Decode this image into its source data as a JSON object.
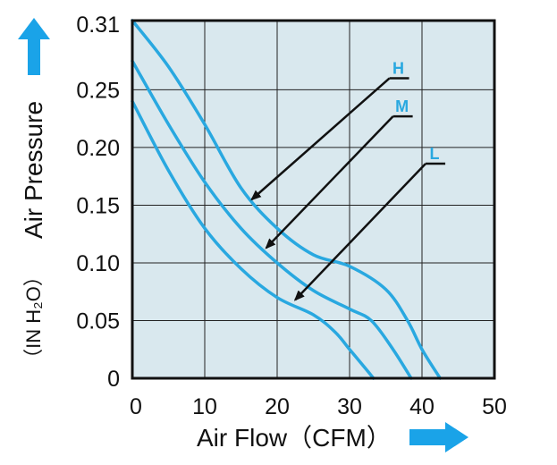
{
  "chart_data": {
    "type": "line",
    "xlabel": "Air Flow（CFM）",
    "ylabel": "Air Pressure",
    "ylabel_unit": "（IN H₂O）",
    "xlim": [
      0,
      50
    ],
    "ylim": [
      0,
      0.31
    ],
    "x_ticks": [
      "0",
      "10",
      "20",
      "30",
      "40",
      "50"
    ],
    "x_tick_values": [
      0,
      10,
      20,
      30,
      40,
      50
    ],
    "y_ticks": [
      "0",
      "0.05",
      "0.10",
      "0.15",
      "0.20",
      "0.25",
      "0.31"
    ],
    "y_tick_values": [
      0,
      0.05,
      0.1,
      0.15,
      0.2,
      0.25,
      0.31
    ],
    "grid": true,
    "colors": {
      "curve": "#29a8e0",
      "plot_bg": "#d9e8ee",
      "arrow": "#111111",
      "axis_arrow": "#1aa3e8"
    },
    "series": [
      {
        "name": "H",
        "x": [
          0,
          5,
          10,
          15,
          20,
          25,
          30,
          35,
          38,
          40,
          42.5
        ],
        "y": [
          0.31,
          0.27,
          0.22,
          0.165,
          0.13,
          0.107,
          0.097,
          0.077,
          0.05,
          0.025,
          0
        ]
      },
      {
        "name": "M",
        "x": [
          0,
          5,
          10,
          15,
          20,
          25,
          30,
          33,
          36,
          38.5
        ],
        "y": [
          0.275,
          0.22,
          0.17,
          0.13,
          0.1,
          0.076,
          0.06,
          0.05,
          0.025,
          0
        ]
      },
      {
        "name": "L",
        "x": [
          0,
          5,
          10,
          15,
          20,
          25,
          28,
          30,
          32,
          33.3
        ],
        "y": [
          0.24,
          0.18,
          0.13,
          0.095,
          0.07,
          0.055,
          0.04,
          0.025,
          0.01,
          0
        ]
      }
    ],
    "annotations": [
      {
        "label": "H",
        "from": [
          35.5,
          0.26
        ],
        "to": [
          16.5,
          0.155
        ]
      },
      {
        "label": "M",
        "from": [
          36,
          0.227
        ],
        "to": [
          18.5,
          0.113
        ]
      },
      {
        "label": "L",
        "from": [
          40.5,
          0.186
        ],
        "to": [
          22.5,
          0.068
        ]
      }
    ]
  }
}
